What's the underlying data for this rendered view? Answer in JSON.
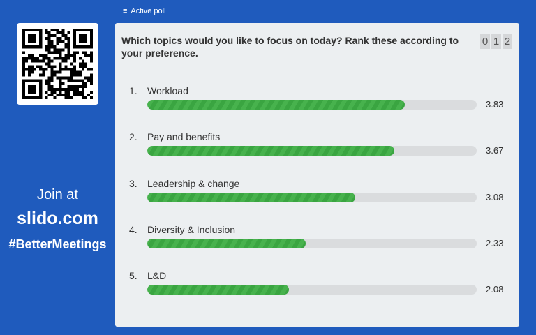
{
  "header": {
    "active_poll_label": "Active poll",
    "icon": "list-icon"
  },
  "sidebar": {
    "join_text": "Join at",
    "site": "slido.com",
    "hashtag": "#BetterMeetings"
  },
  "poll": {
    "question": "Which topics would you like to focus on today? Rank these according to your preference.",
    "counter_digits": [
      "0",
      "1",
      "2"
    ],
    "max_score": 5,
    "bar_color": "#3aa541",
    "items": [
      {
        "rank": "1.",
        "label": "Workload",
        "score": "3.83"
      },
      {
        "rank": "2.",
        "label": "Pay and benefits",
        "score": "3.67"
      },
      {
        "rank": "3.",
        "label": "Leadership & change",
        "score": "3.08"
      },
      {
        "rank": "4.",
        "label": "Diversity & Inclusion",
        "score": "2.33"
      },
      {
        "rank": "5.",
        "label": "L&D",
        "score": "2.08"
      }
    ]
  }
}
